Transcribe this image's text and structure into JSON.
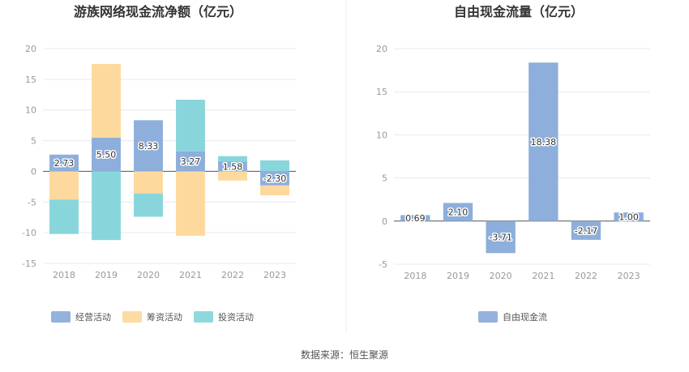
{
  "source_text": "数据来源：恒生聚源",
  "chart_data": [
    {
      "type": "bar",
      "stacked": true,
      "title": "游族网络现金流净额（亿元）",
      "categories": [
        "2018",
        "2019",
        "2020",
        "2021",
        "2022",
        "2023"
      ],
      "ylim": [
        -15,
        20
      ],
      "yticks": [
        -15,
        -10,
        -5,
        0,
        5,
        10,
        15,
        20
      ],
      "grid": true,
      "legend_position": "bottom",
      "series": [
        {
          "name": "经营活动",
          "color": "#8eaedb",
          "values": [
            2.73,
            5.5,
            8.33,
            3.27,
            1.58,
            -2.3
          ],
          "labels": [
            "2.73",
            "5.50",
            "8.33",
            "3.27",
            "1.58",
            "-2.30"
          ]
        },
        {
          "name": "筹资活动",
          "color": "#fdd99d",
          "values": [
            -4.6,
            12.0,
            -3.6,
            -10.5,
            -1.5,
            -1.6
          ]
        },
        {
          "name": "投资活动",
          "color": "#88d6dc",
          "values": [
            -5.6,
            -11.2,
            -3.8,
            8.4,
            0.9,
            1.8
          ]
        }
      ]
    },
    {
      "type": "bar",
      "title": "自由现金流量（亿元）",
      "categories": [
        "2018",
        "2019",
        "2020",
        "2021",
        "2022",
        "2023"
      ],
      "ylim": [
        -5,
        20
      ],
      "yticks": [
        -5,
        0,
        5,
        10,
        15,
        20
      ],
      "grid": true,
      "legend_position": "bottom",
      "series": [
        {
          "name": "自由现金流",
          "color": "#8eaedb",
          "values": [
            0.69,
            2.1,
            -3.71,
            18.38,
            -2.17,
            1.0
          ],
          "labels": [
            "0.69",
            "2.10",
            "-3.71",
            "18.38",
            "-2.17",
            "1.00"
          ]
        }
      ]
    }
  ]
}
